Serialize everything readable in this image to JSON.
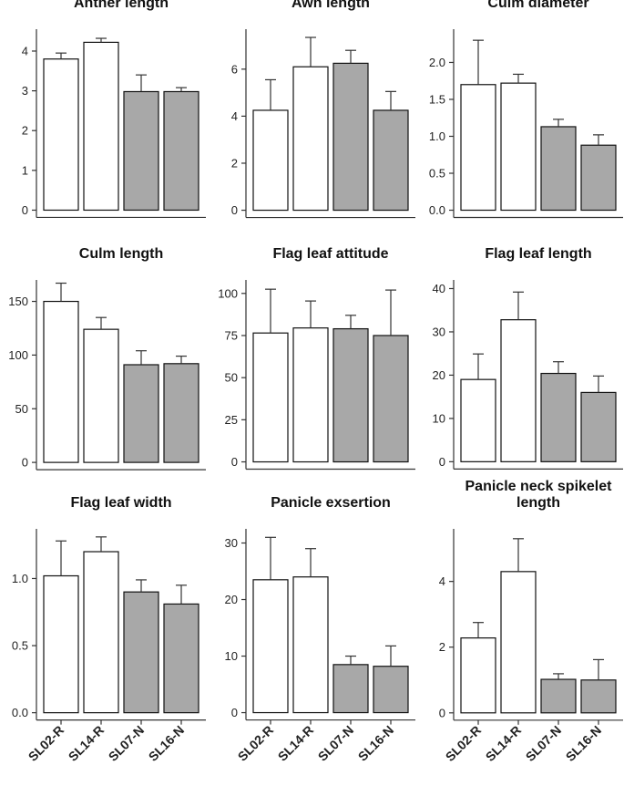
{
  "colors": {
    "ref": "#ffffff",
    "novel": "#a8a8a8",
    "stroke": "#111111"
  },
  "x_categories": [
    "SL02-R",
    "SL14-R",
    "SL07-N",
    "SL16-N"
  ],
  "chart_data": [
    {
      "type": "bar",
      "title": "Anther length",
      "title_lines": [
        "Anther length"
      ],
      "categories": [
        "SL02-R",
        "SL14-R",
        "SL07-N",
        "SL16-N"
      ],
      "values": [
        3.8,
        4.22,
        2.98,
        2.98
      ],
      "errors": [
        0.15,
        0.1,
        0.42,
        0.1
      ],
      "yticks": [
        0,
        1,
        2,
        3,
        4
      ],
      "ylim": [
        -0.15,
        4.55
      ],
      "show_xlabels": false
    },
    {
      "type": "bar",
      "title": "Awn length",
      "title_lines": [
        "Awn length"
      ],
      "categories": [
        "SL02-R",
        "SL14-R",
        "SL07-N",
        "SL16-N"
      ],
      "values": [
        4.25,
        6.1,
        6.25,
        4.25
      ],
      "errors": [
        1.3,
        1.25,
        0.55,
        0.8
      ],
      "yticks": [
        0,
        2,
        4,
        6
      ],
      "ylim": [
        -0.25,
        7.7
      ],
      "show_xlabels": false
    },
    {
      "type": "bar",
      "title": "Culm diameter",
      "title_lines": [
        "Culm diameter"
      ],
      "categories": [
        "SL02-R",
        "SL14-R",
        "SL07-N",
        "SL16-N"
      ],
      "values": [
        1.7,
        1.72,
        1.13,
        0.88
      ],
      "errors": [
        0.6,
        0.12,
        0.1,
        0.14
      ],
      "yticks": [
        "0.0",
        "0.5",
        "1.0",
        "1.5",
        "2.0"
      ],
      "ylim": [
        -0.08,
        2.45
      ],
      "show_xlabels": false
    },
    {
      "type": "bar",
      "title": "Culm length",
      "title_lines": [
        "Culm length"
      ],
      "categories": [
        "SL02-R",
        "SL14-R",
        "SL07-N",
        "SL16-N"
      ],
      "values": [
        150,
        124,
        91,
        92
      ],
      "errors": [
        17,
        11,
        13,
        7
      ],
      "yticks": [
        0,
        50,
        100,
        150
      ],
      "ylim": [
        -5,
        170
      ],
      "show_xlabels": false
    },
    {
      "type": "bar",
      "title": "Flag leaf attitude",
      "title_lines": [
        "Flag leaf attitude"
      ],
      "categories": [
        "SL02-R",
        "SL14-R",
        "SL07-N",
        "SL16-N"
      ],
      "values": [
        76.5,
        79.5,
        79,
        75
      ],
      "errors": [
        26,
        16,
        8,
        27
      ],
      "yticks": [
        0,
        25,
        50,
        75,
        100
      ],
      "ylim": [
        -3.5,
        108
      ],
      "show_xlabels": false
    },
    {
      "type": "bar",
      "title": "Flag leaf length",
      "title_lines": [
        "Flag leaf length"
      ],
      "categories": [
        "SL02-R",
        "SL14-R",
        "SL07-N",
        "SL16-N"
      ],
      "values": [
        19,
        32.8,
        20.4,
        16
      ],
      "errors": [
        5.9,
        6.4,
        2.7,
        3.8
      ],
      "yticks": [
        0,
        10,
        20,
        30,
        40
      ],
      "ylim": [
        -1.4,
        42
      ],
      "show_xlabels": false
    },
    {
      "type": "bar",
      "title": "Flag leaf width",
      "title_lines": [
        "Flag leaf width"
      ],
      "categories": [
        "SL02-R",
        "SL14-R",
        "SL07-N",
        "SL16-N"
      ],
      "values": [
        1.02,
        1.2,
        0.9,
        0.81
      ],
      "errors": [
        0.26,
        0.11,
        0.09,
        0.14
      ],
      "yticks": [
        "0.0",
        "0.5",
        "1.0"
      ],
      "ylim": [
        -0.05,
        1.37
      ],
      "show_xlabels": true
    },
    {
      "type": "bar",
      "title": "Panicle exsertion",
      "title_lines": [
        "Panicle exsertion"
      ],
      "categories": [
        "SL02-R",
        "SL14-R",
        "SL07-N",
        "SL16-N"
      ],
      "values": [
        23.5,
        24,
        8.5,
        8.2
      ],
      "errors": [
        7.5,
        5,
        1.5,
        3.6
      ],
      "yticks": [
        0,
        10,
        20,
        30
      ],
      "ylim": [
        -1.2,
        32.5
      ],
      "show_xlabels": true
    },
    {
      "type": "bar",
      "title": "Panicle neck spikelet length",
      "title_lines": [
        "Panicle neck spikelet",
        "length"
      ],
      "categories": [
        "SL02-R",
        "SL14-R",
        "SL07-N",
        "SL16-N"
      ],
      "values": [
        2.28,
        4.3,
        1.02,
        1.0
      ],
      "errors": [
        0.47,
        1.0,
        0.17,
        0.62
      ],
      "yticks": [
        0,
        2,
        4
      ],
      "ylim": [
        -0.2,
        5.6
      ],
      "show_xlabels": true
    }
  ]
}
